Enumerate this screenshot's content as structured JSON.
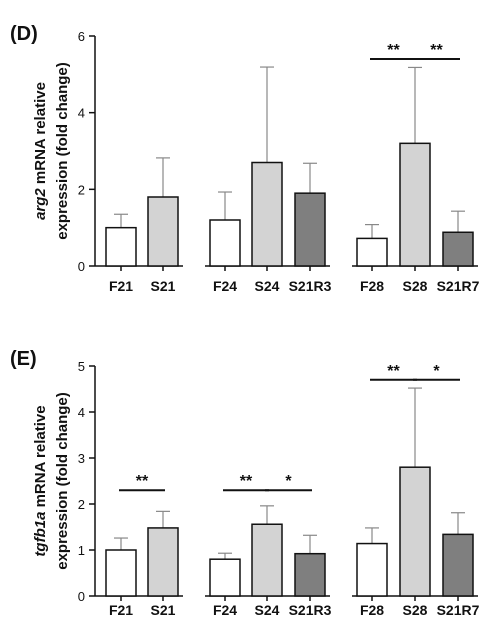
{
  "chart_data": [
    {
      "type": "bar",
      "panel_label": "(D)",
      "ylabel_gene": "arg2",
      "ylabel_rest": " mRNA relative",
      "ylabel_line2": "expression (fold change)",
      "ylim": [
        0,
        6
      ],
      "yticks": [
        "0",
        "2",
        "4",
        "6"
      ],
      "groups": [
        {
          "categories": [
            "F21",
            "S21"
          ],
          "values": [
            1.0,
            1.8
          ],
          "errors": [
            0.35,
            1.02
          ],
          "fills": [
            "white",
            "light"
          ]
        },
        {
          "categories": [
            "F24",
            "S24",
            "S21R3"
          ],
          "values": [
            1.2,
            2.7,
            1.9
          ],
          "errors": [
            0.73,
            2.49,
            0.78
          ],
          "fills": [
            "white",
            "light",
            "dark"
          ]
        },
        {
          "categories": [
            "F28",
            "S28",
            "S21R7"
          ],
          "values": [
            0.72,
            3.2,
            0.88
          ],
          "errors": [
            0.36,
            1.98,
            0.55
          ],
          "fills": [
            "white",
            "light",
            "dark"
          ]
        }
      ],
      "significance": [
        {
          "group": 2,
          "from": 0,
          "to": 1,
          "label": "**",
          "y": 5.4
        },
        {
          "group": 2,
          "from": 1,
          "to": 2,
          "label": "**",
          "y": 5.4
        }
      ]
    },
    {
      "type": "bar",
      "panel_label": "(E)",
      "ylabel_gene": "tgfb1a",
      "ylabel_rest": " mRNA relative",
      "ylabel_line2": "expression (fold change)",
      "ylim": [
        0,
        5
      ],
      "yticks": [
        "0",
        "1",
        "2",
        "3",
        "4",
        "5"
      ],
      "groups": [
        {
          "categories": [
            "F21",
            "S21"
          ],
          "values": [
            1.0,
            1.48
          ],
          "errors": [
            0.26,
            0.36
          ],
          "fills": [
            "white",
            "light"
          ]
        },
        {
          "categories": [
            "F24",
            "S24",
            "S21R3"
          ],
          "values": [
            0.8,
            1.56,
            0.92
          ],
          "errors": [
            0.13,
            0.4,
            0.4
          ],
          "fills": [
            "white",
            "light",
            "dark"
          ]
        },
        {
          "categories": [
            "F28",
            "S28",
            "S21R7"
          ],
          "values": [
            1.14,
            2.8,
            1.34
          ],
          "errors": [
            0.34,
            1.72,
            0.47
          ],
          "fills": [
            "white",
            "light",
            "dark"
          ]
        }
      ],
      "significance": [
        {
          "group": 0,
          "from": 0,
          "to": 1,
          "label": "**",
          "y": 2.3
        },
        {
          "group": 1,
          "from": 0,
          "to": 1,
          "label": "**",
          "y": 2.3
        },
        {
          "group": 1,
          "from": 1,
          "to": 2,
          "label": "*",
          "y": 2.3
        },
        {
          "group": 2,
          "from": 0,
          "to": 1,
          "label": "**",
          "y": 4.7
        },
        {
          "group": 2,
          "from": 1,
          "to": 2,
          "label": "*",
          "y": 4.7
        }
      ]
    }
  ],
  "colors": {
    "white": "#ffffff",
    "light": "#d3d3d3",
    "dark": "#7f7f7f",
    "stroke": "#111111",
    "error": "#888888"
  }
}
